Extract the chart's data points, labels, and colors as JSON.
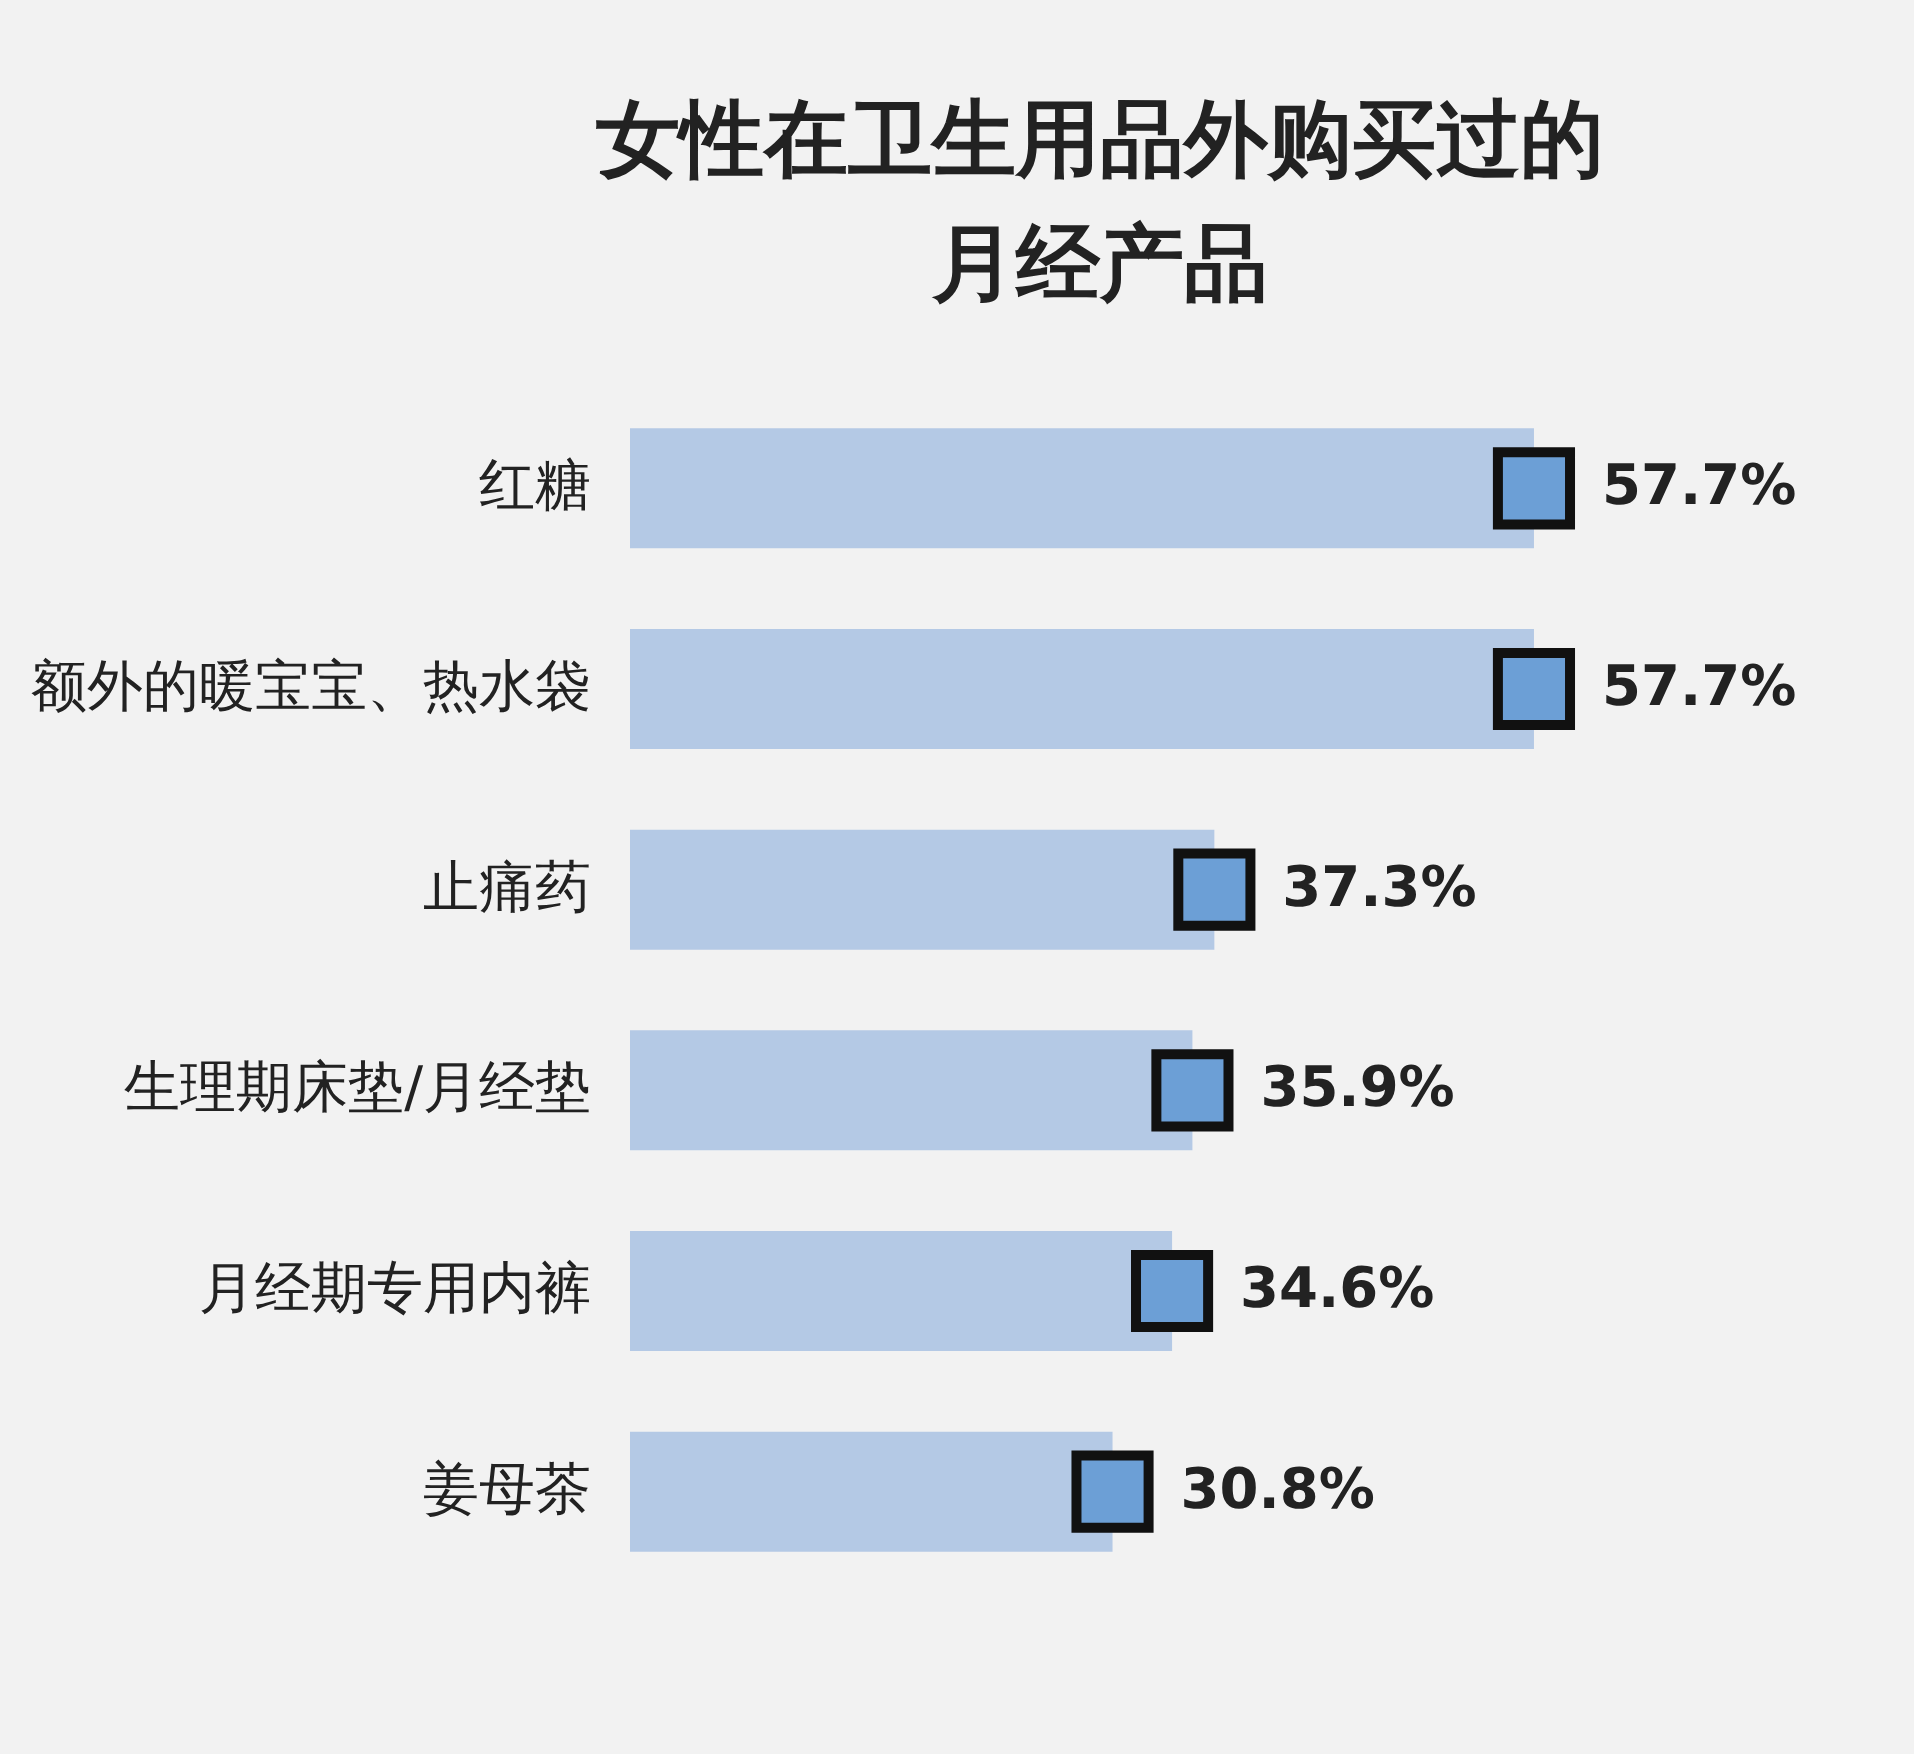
{
  "chart_data": {
    "type": "bar",
    "orientation": "horizontal",
    "title": "女性在卫生用品外购买过的月经产品",
    "categories": [
      "红糖",
      "额外的暖宝宝、热水袋",
      "止痛药",
      "生理期床垫/月经垫",
      "月经期专用内裤",
      "姜母茶"
    ],
    "series": [
      {
        "color": "#b4c9e5",
        "values": [
          57.7,
          57.7,
          37.3,
          35.9,
          34.6,
          30.8
        ],
        "value_labels": [
          "57.7%",
          "57.7%",
          "37.3%",
          "35.9%",
          "34.6%",
          "30.8%"
        ]
      },
      {
        "type": "scatter",
        "marker": "square",
        "color": "#6c9fd6",
        "x": [
          "红糖",
          "额外的暖宝宝、热水袋",
          "止痛药",
          "生理期床垫/月经垫",
          "月经期专用内裤",
          "姜母茶"
        ],
        "values": [
          57.7,
          57.7,
          37.3,
          35.9,
          34.6,
          30.8
        ]
      }
    ]
  }
}
